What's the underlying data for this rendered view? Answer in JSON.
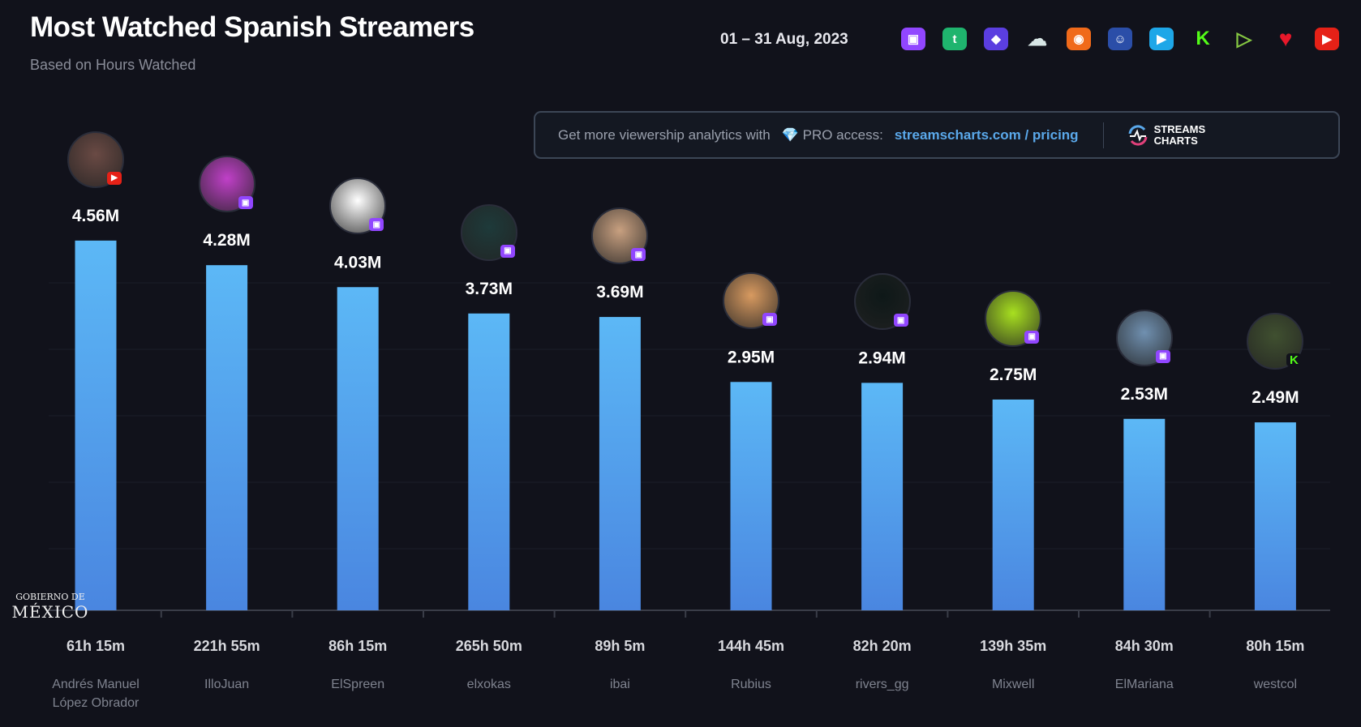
{
  "header": {
    "title": "Most Watched Spanish Streamers",
    "subtitle": "Based on Hours Watched",
    "date_range": "01 – 31 Aug, 2023"
  },
  "platforms": [
    {
      "name": "twitch-icon",
      "color": "#9146ff",
      "glyph": "▣"
    },
    {
      "name": "trovo-icon",
      "color": "#1fb46e",
      "glyph": "t"
    },
    {
      "name": "dlive-icon",
      "color": "#5b3ee0",
      "glyph": "◆"
    },
    {
      "name": "ghost-icon",
      "color": "#d8e6e6",
      "glyph": "☁"
    },
    {
      "name": "nimo-icon",
      "color": "#f06a1a",
      "glyph": "◉"
    },
    {
      "name": "bigo-icon",
      "color": "#2b4ea8",
      "glyph": "☺"
    },
    {
      "name": "camera-icon",
      "color": "#1ea7e8",
      "glyph": "▶"
    },
    {
      "name": "kick-icon",
      "color": "#53fc18",
      "glyph": "K"
    },
    {
      "name": "rumble-icon",
      "color": "#85c742",
      "glyph": "▷"
    },
    {
      "name": "heart-icon",
      "color": "#e8182a",
      "glyph": "♥"
    },
    {
      "name": "youtube-icon",
      "color": "#e62117",
      "glyph": "▶"
    }
  ],
  "banner": {
    "text": "Get more viewership analytics with",
    "pro": "💎 PRO access:",
    "link": "streamscharts.com / pricing",
    "logo_line1": "STREAMS",
    "logo_line2": "CHARTS"
  },
  "watermark": {
    "line1": "GOBIERNO DE",
    "line2": "MÉXICO"
  },
  "colors": {
    "bar_top": "#5cb8f6",
    "bar_bottom": "#4a86e0",
    "background": "#11121b"
  },
  "chart_data": {
    "type": "bar",
    "title": "Most Watched Spanish Streamers",
    "subtitle": "Based on Hours Watched",
    "ylim": [
      0.35,
      4.9
    ],
    "grid": true,
    "categories": [
      "Andrés Manuel López Obrador",
      "IlloJuan",
      "ElSpreen",
      "elxokas",
      "ibai",
      "Rubius",
      "rivers_gg",
      "Mixwell",
      "ElMariana",
      "westcol"
    ],
    "values": [
      4.56,
      4.28,
      4.03,
      3.73,
      3.69,
      2.95,
      2.94,
      2.75,
      2.53,
      2.49
    ],
    "value_labels": [
      "4.56M",
      "4.28M",
      "4.03M",
      "3.73M",
      "3.69M",
      "2.95M",
      "2.94M",
      "2.75M",
      "2.53M",
      "2.49M"
    ],
    "airtime": [
      "61h 15m",
      "221h 55m",
      "86h 15m",
      "265h 50m",
      "89h 5m",
      "144h 45m",
      "82h 20m",
      "139h 35m",
      "84h 30m",
      "80h 15m"
    ],
    "platform": [
      "youtube",
      "twitch",
      "twitch",
      "twitch",
      "twitch",
      "twitch",
      "twitch",
      "twitch",
      "twitch",
      "kick"
    ],
    "avatar_colors": [
      "#6a4a44",
      "#c040c8",
      "#ffffff",
      "#1e3a3a",
      "#c8a080",
      "#d89a60",
      "#0e1818",
      "#a8e020",
      "#7090b0",
      "#405030"
    ]
  }
}
